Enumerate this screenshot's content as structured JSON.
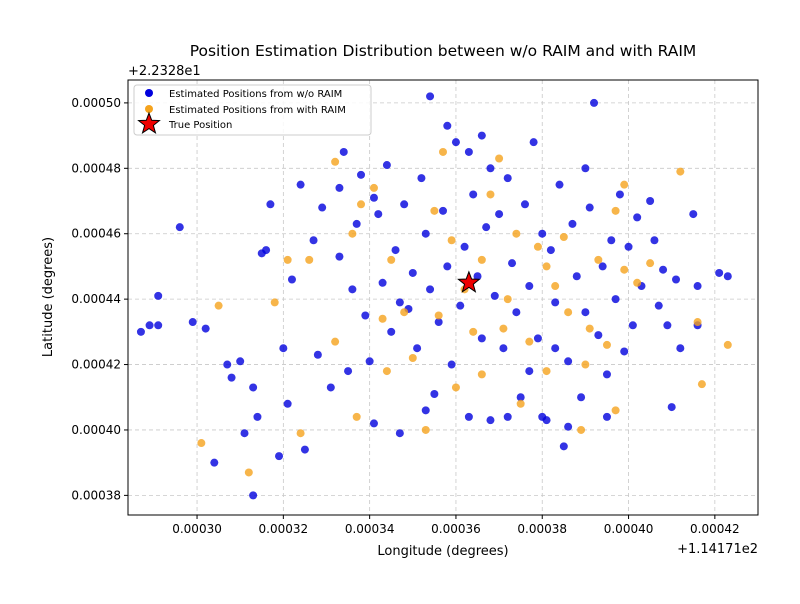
{
  "chart_data": {
    "type": "scatter",
    "title": "Position Estimation Distribution between w/o RAIM and with RAIM",
    "xlabel": "Longitude (degrees)",
    "ylabel": "Latitude (degrees)",
    "x_offset_label": "+1.14171e2",
    "y_offset_label": "+2.2328e1",
    "xlim": [
      0.000284,
      0.00043
    ],
    "ylim": [
      0.000374,
      0.000507
    ],
    "x_ticks": [
      0.0003,
      0.00032,
      0.00034,
      0.00036,
      0.00038,
      0.0004,
      0.00042
    ],
    "x_tick_labels": [
      "0.00030",
      "0.00032",
      "0.00034",
      "0.00036",
      "0.00038",
      "0.00040",
      "0.00042"
    ],
    "y_ticks": [
      0.00038,
      0.0004,
      0.00042,
      0.00044,
      0.00046,
      0.00048,
      0.0005
    ],
    "y_tick_labels": [
      "0.00038",
      "0.00040",
      "0.00042",
      "0.00044",
      "0.00046",
      "0.00048",
      "0.00050"
    ],
    "grid": true,
    "legend_position": "upper-left",
    "colors": {
      "without_raim": "#0000dd",
      "with_raim": "#f5a31d",
      "true_position": "#ee0000"
    },
    "series": [
      {
        "name": "Estimated Positions from w/o RAIM",
        "marker": "circle",
        "points": [
          [
            0.000296,
            0.000462
          ],
          [
            0.000291,
            0.000441
          ],
          [
            0.000287,
            0.00043
          ],
          [
            0.000289,
            0.000432
          ],
          [
            0.000291,
            0.000432
          ],
          [
            0.000299,
            0.000433
          ],
          [
            0.000302,
            0.000431
          ],
          [
            0.000304,
            0.00039
          ],
          [
            0.000307,
            0.00042
          ],
          [
            0.000308,
            0.000416
          ],
          [
            0.00031,
            0.000421
          ],
          [
            0.000311,
            0.000399
          ],
          [
            0.000313,
            0.00038
          ],
          [
            0.000313,
            0.000413
          ],
          [
            0.000314,
            0.000404
          ],
          [
            0.000315,
            0.000454
          ],
          [
            0.000316,
            0.000455
          ],
          [
            0.000317,
            0.000469
          ],
          [
            0.000319,
            0.000392
          ],
          [
            0.00032,
            0.000425
          ],
          [
            0.000321,
            0.000408
          ],
          [
            0.000322,
            0.000446
          ],
          [
            0.000324,
            0.000475
          ],
          [
            0.000325,
            0.000394
          ],
          [
            0.000327,
            0.000458
          ],
          [
            0.000328,
            0.000423
          ],
          [
            0.000329,
            0.000468
          ],
          [
            0.000331,
            0.000413
          ],
          [
            0.000333,
            0.000453
          ],
          [
            0.000334,
            0.000485
          ],
          [
            0.000335,
            0.000418
          ],
          [
            0.000336,
            0.000443
          ],
          [
            0.000337,
            0.000463
          ],
          [
            0.000338,
            0.000478
          ],
          [
            0.000339,
            0.000435
          ],
          [
            0.00034,
            0.000421
          ],
          [
            0.000341,
            0.000402
          ],
          [
            0.000342,
            0.000466
          ],
          [
            0.000343,
            0.000445
          ],
          [
            0.000344,
            0.000481
          ],
          [
            0.000345,
            0.00043
          ],
          [
            0.000346,
            0.000455
          ],
          [
            0.000347,
            0.000399
          ],
          [
            0.000348,
            0.000469
          ],
          [
            0.000349,
            0.000437
          ],
          [
            0.00035,
            0.000448
          ],
          [
            0.000351,
            0.000425
          ],
          [
            0.000352,
            0.000477
          ],
          [
            0.000353,
            0.00046
          ],
          [
            0.000354,
            0.000502
          ],
          [
            0.000354,
            0.000443
          ],
          [
            0.000355,
            0.000411
          ],
          [
            0.000356,
            0.000433
          ],
          [
            0.000357,
            0.000467
          ],
          [
            0.000358,
            0.000493
          ],
          [
            0.000358,
            0.00045
          ],
          [
            0.000359,
            0.00042
          ],
          [
            0.00036,
            0.000488
          ],
          [
            0.000361,
            0.000438
          ],
          [
            0.000362,
            0.000456
          ],
          [
            0.000363,
            0.000404
          ],
          [
            0.000364,
            0.000472
          ],
          [
            0.000365,
            0.000447
          ],
          [
            0.000366,
            0.00049
          ],
          [
            0.000366,
            0.000428
          ],
          [
            0.000367,
            0.000462
          ],
          [
            0.000368,
            0.000403
          ],
          [
            0.000369,
            0.000441
          ],
          [
            0.00037,
            0.000466
          ],
          [
            0.000371,
            0.000425
          ],
          [
            0.000372,
            0.000477
          ],
          [
            0.000373,
            0.000451
          ],
          [
            0.000374,
            0.000436
          ],
          [
            0.000375,
            0.00041
          ],
          [
            0.000376,
            0.000469
          ],
          [
            0.000377,
            0.000444
          ],
          [
            0.000378,
            0.000488
          ],
          [
            0.000379,
            0.000428
          ],
          [
            0.00038,
            0.00046
          ],
          [
            0.000381,
            0.000403
          ],
          [
            0.000382,
            0.000455
          ],
          [
            0.000383,
            0.000439
          ],
          [
            0.000384,
            0.000475
          ],
          [
            0.000385,
            0.000395
          ],
          [
            0.000386,
            0.000421
          ],
          [
            0.000387,
            0.000463
          ],
          [
            0.000388,
            0.000447
          ],
          [
            0.000389,
            0.00041
          ],
          [
            0.00039,
            0.000436
          ],
          [
            0.000391,
            0.000468
          ],
          [
            0.000392,
            0.0005
          ],
          [
            0.000393,
            0.000429
          ],
          [
            0.000394,
            0.00045
          ],
          [
            0.000395,
            0.000417
          ],
          [
            0.000396,
            0.000458
          ],
          [
            0.000397,
            0.00044
          ],
          [
            0.000398,
            0.000472
          ],
          [
            0.000399,
            0.000424
          ],
          [
            0.0004,
            0.000456
          ],
          [
            0.000401,
            0.000432
          ],
          [
            0.000402,
            0.000465
          ],
          [
            0.000403,
            0.000444
          ],
          [
            0.000405,
            0.00047
          ],
          [
            0.000406,
            0.000458
          ],
          [
            0.000407,
            0.000438
          ],
          [
            0.000408,
            0.000449
          ],
          [
            0.000409,
            0.000432
          ],
          [
            0.00041,
            0.000407
          ],
          [
            0.000411,
            0.000446
          ],
          [
            0.000412,
            0.000425
          ],
          [
            0.000415,
            0.000466
          ],
          [
            0.000416,
            0.000444
          ],
          [
            0.000416,
            0.000432
          ],
          [
            0.000421,
            0.000448
          ],
          [
            0.000423,
            0.000447
          ],
          [
            0.00038,
            0.000404
          ],
          [
            0.000372,
            0.000404
          ],
          [
            0.000353,
            0.000406
          ],
          [
            0.000347,
            0.000439
          ],
          [
            0.000383,
            0.000425
          ],
          [
            0.000377,
            0.000418
          ],
          [
            0.000368,
            0.00048
          ],
          [
            0.000341,
            0.000471
          ],
          [
            0.000333,
            0.000474
          ],
          [
            0.000363,
            0.000485
          ],
          [
            0.00039,
            0.00048
          ],
          [
            0.000395,
            0.000404
          ],
          [
            0.000386,
            0.000401
          ]
        ]
      },
      {
        "name": "Estimated Positions from with RAIM",
        "marker": "circle",
        "points": [
          [
            0.000305,
            0.000438
          ],
          [
            0.000301,
            0.000396
          ],
          [
            0.000312,
            0.000387
          ],
          [
            0.000318,
            0.000439
          ],
          [
            0.000321,
            0.000452
          ],
          [
            0.000324,
            0.000399
          ],
          [
            0.000326,
            0.000452
          ],
          [
            0.000332,
            0.000482
          ],
          [
            0.000336,
            0.00046
          ],
          [
            0.000338,
            0.000469
          ],
          [
            0.000337,
            0.000404
          ],
          [
            0.000341,
            0.000474
          ],
          [
            0.000345,
            0.000452
          ],
          [
            0.000348,
            0.000436
          ],
          [
            0.00035,
            0.000422
          ],
          [
            0.000353,
            0.0004
          ],
          [
            0.000356,
            0.000435
          ],
          [
            0.000357,
            0.000485
          ],
          [
            0.000359,
            0.000458
          ],
          [
            0.00036,
            0.000413
          ],
          [
            0.000362,
            0.000443
          ],
          [
            0.000364,
            0.00043
          ],
          [
            0.000366,
            0.000452
          ],
          [
            0.000368,
            0.000472
          ],
          [
            0.00037,
            0.000483
          ],
          [
            0.000372,
            0.00044
          ],
          [
            0.000374,
            0.00046
          ],
          [
            0.000375,
            0.000408
          ],
          [
            0.000377,
            0.000427
          ],
          [
            0.000379,
            0.000456
          ],
          [
            0.000381,
            0.000418
          ],
          [
            0.000383,
            0.000444
          ],
          [
            0.000385,
            0.000459
          ],
          [
            0.000386,
            0.000436
          ],
          [
            0.000389,
            0.0004
          ],
          [
            0.000391,
            0.000431
          ],
          [
            0.000393,
            0.000452
          ],
          [
            0.000395,
            0.000426
          ],
          [
            0.000397,
            0.000406
          ],
          [
            0.000399,
            0.000475
          ],
          [
            0.000399,
            0.000449
          ],
          [
            0.000402,
            0.000445
          ],
          [
            0.000405,
            0.000451
          ],
          [
            0.000412,
            0.000479
          ],
          [
            0.000416,
            0.000433
          ],
          [
            0.000417,
            0.000414
          ],
          [
            0.000423,
            0.000426
          ],
          [
            0.000344,
            0.000418
          ],
          [
            0.000366,
            0.000417
          ],
          [
            0.000381,
            0.00045
          ],
          [
            0.00039,
            0.00042
          ],
          [
            0.000355,
            0.000467
          ],
          [
            0.000343,
            0.000434
          ],
          [
            0.000332,
            0.000427
          ],
          [
            0.000371,
            0.000431
          ],
          [
            0.000397,
            0.000467
          ]
        ]
      },
      {
        "name": "True Position",
        "marker": "star",
        "points": [
          [
            0.000363,
            0.000445
          ]
        ]
      }
    ]
  }
}
